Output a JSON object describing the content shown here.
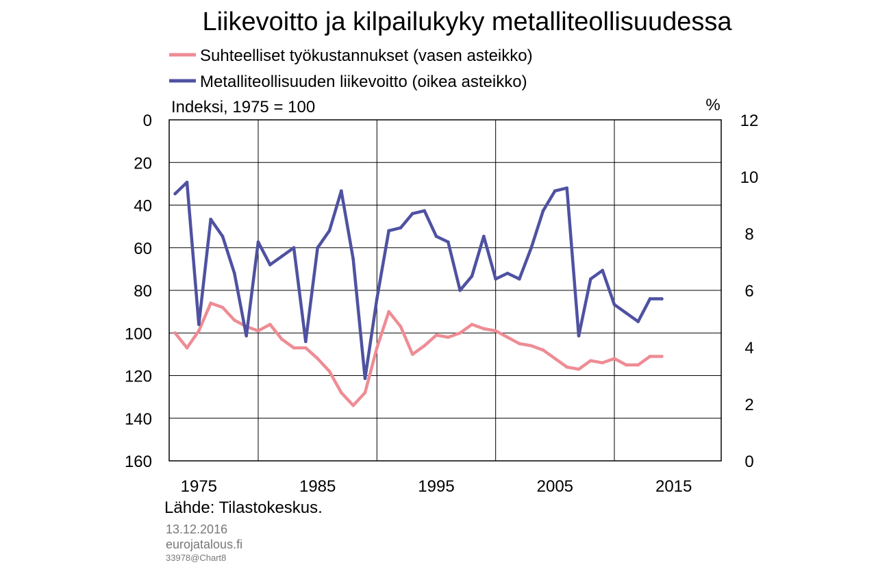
{
  "footer": {
    "date": "13.12.2016",
    "site": "eurojatalous.fi",
    "code": "33978@Chart8"
  },
  "chart_data": {
    "type": "line",
    "title": "Liikevoitto ja kilpailukyky metalliteollisuudessa",
    "source": "Lähde: Tilastokeskus.",
    "left_axis": {
      "label": "Indeksi, 1975 = 100",
      "range": [
        0,
        160
      ],
      "inverted": true,
      "ticks": [
        "0",
        "20",
        "40",
        "60",
        "80",
        "100",
        "120",
        "140",
        "160"
      ]
    },
    "right_axis": {
      "label": "%",
      "range": [
        0,
        12
      ],
      "ticks": [
        "0",
        "2",
        "4",
        "6",
        "8",
        "10",
        "12"
      ]
    },
    "x_axis": {
      "range": [
        1972.5,
        2019
      ],
      "ticks": [
        "1975",
        "1985",
        "1995",
        "2005",
        "2015"
      ]
    },
    "grid": true,
    "legend_placement": "top-left",
    "series": [
      {
        "name": "Suhteelliset työkustannukset (vasen asteikko)",
        "axis": "left",
        "color": "#ee8c94",
        "x": [
          1973,
          1974,
          1975,
          1976,
          1977,
          1978,
          1979,
          1980,
          1981,
          1982,
          1983,
          1984,
          1985,
          1986,
          1987,
          1988,
          1989,
          1990,
          1991,
          1992,
          1993,
          1994,
          1995,
          1996,
          1997,
          1998,
          1999,
          2000,
          2001,
          2002,
          2003,
          2004,
          2005,
          2006,
          2007,
          2008,
          2009,
          2010,
          2011,
          2012,
          2013,
          2014
        ],
        "y": [
          100,
          107,
          99,
          86,
          88,
          94,
          97,
          99,
          96,
          103,
          107,
          107,
          112,
          118,
          128,
          134,
          128,
          107,
          90,
          97,
          110,
          106,
          101,
          102,
          100,
          96,
          98,
          99,
          102,
          105,
          106,
          108,
          112,
          116,
          117,
          113,
          114,
          112,
          115,
          115,
          111,
          111
        ]
      },
      {
        "name": "Metalliteollisuuden liikevoitto (oikea asteikko)",
        "axis": "right",
        "color": "#4f52a1",
        "x": [
          1973,
          1974,
          1975,
          1976,
          1977,
          1978,
          1979,
          1980,
          1981,
          1982,
          1983,
          1984,
          1985,
          1986,
          1987,
          1988,
          1989,
          1990,
          1991,
          1992,
          1993,
          1994,
          1995,
          1996,
          1997,
          1998,
          1999,
          2000,
          2001,
          2002,
          2003,
          2004,
          2005,
          2006,
          2007,
          2008,
          2009,
          2010,
          2011,
          2012,
          2013,
          2014
        ],
        "y": [
          9.4,
          9.8,
          4.8,
          8.5,
          7.9,
          6.6,
          4.4,
          7.7,
          6.9,
          7.2,
          7.5,
          4.2,
          7.5,
          8.1,
          9.5,
          7.1,
          2.9,
          5.7,
          8.1,
          8.2,
          8.7,
          8.8,
          7.9,
          7.7,
          6.0,
          6.5,
          7.9,
          6.4,
          6.6,
          6.4,
          7.5,
          8.8,
          9.5,
          9.6,
          4.4,
          6.4,
          6.7,
          5.5,
          5.2,
          4.9,
          5.7,
          5.7
        ]
      }
    ]
  }
}
